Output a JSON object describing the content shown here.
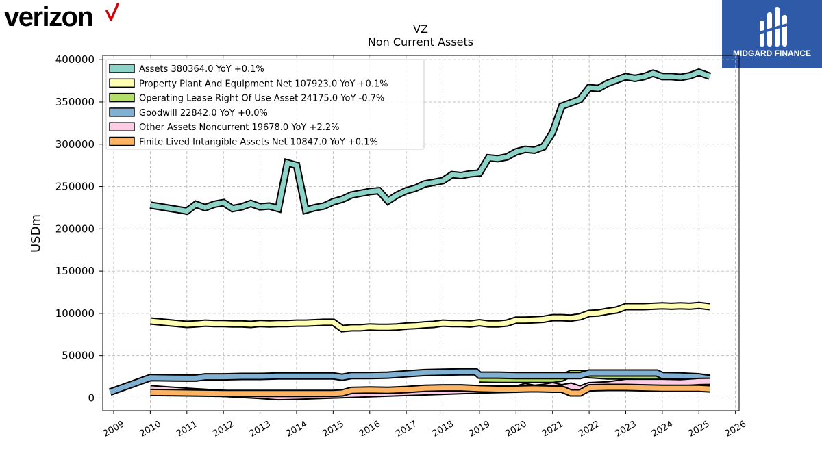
{
  "brand": {
    "left_logo_text": "verizon",
    "right_logo_text": "MIDGARD FINANCE"
  },
  "chart_data": {
    "type": "area",
    "title": "VZ",
    "subtitle": "Non Current  Assets",
    "ylabel": "USDm",
    "xlabel": "",
    "xlim": [
      2008.7,
      2026.1
    ],
    "ylim": [
      -15000,
      405000
    ],
    "x_ticks": [
      "2009",
      "2010",
      "2011",
      "2012",
      "2013",
      "2014",
      "2015",
      "2016",
      "2017",
      "2018",
      "2019",
      "2020",
      "2021",
      "2022",
      "2023",
      "2024",
      "2025",
      "2026"
    ],
    "y_ticks": [
      "0",
      "50000",
      "100000",
      "150000",
      "200000",
      "250000",
      "300000",
      "350000",
      "400000"
    ],
    "grid": true,
    "legend_position": "top-left",
    "series": [
      {
        "name": "Assets  380364.0 YoY +0.1%",
        "color": "#8dd3c7",
        "x": [
          2010.0,
          2011.0,
          2011.25,
          2011.5,
          2011.75,
          2012.0,
          2012.25,
          2012.5,
          2012.75,
          2013.0,
          2013.25,
          2013.5,
          2013.75,
          2014.0,
          2014.25,
          2014.5,
          2014.75,
          2015.0,
          2015.25,
          2015.5,
          2015.75,
          2016.0,
          2016.25,
          2016.5,
          2016.75,
          2017.0,
          2017.25,
          2017.5,
          2017.75,
          2018.0,
          2018.25,
          2018.5,
          2018.75,
          2019.0,
          2019.25,
          2019.5,
          2019.75,
          2020.0,
          2020.25,
          2020.5,
          2020.75,
          2021.0,
          2021.25,
          2021.5,
          2021.75,
          2022.0,
          2022.25,
          2022.5,
          2022.75,
          2023.0,
          2023.25,
          2023.5,
          2023.75,
          2024.0,
          2024.25,
          2024.5,
          2024.75,
          2025.0,
          2025.3
        ],
        "values": [
          228000,
          221000,
          229000,
          225000,
          229000,
          231000,
          224000,
          226000,
          230000,
          226000,
          227000,
          224000,
          278000,
          275000,
          222000,
          225000,
          227000,
          232000,
          235000,
          240000,
          242000,
          244000,
          245000,
          233000,
          240000,
          245000,
          248000,
          253000,
          255000,
          257000,
          264000,
          263000,
          265000,
          266000,
          284000,
          283000,
          285000,
          291000,
          294000,
          293000,
          297000,
          314000,
          345000,
          349000,
          353000,
          367000,
          366000,
          372000,
          376000,
          380000,
          378000,
          380000,
          384000,
          380000,
          380000,
          379000,
          381000,
          385000,
          380364
        ]
      },
      {
        "name": "Property Plant And Equipment Net  107923.0 YoY +0.1%",
        "color": "#ffffb3",
        "x": [
          2010.0,
          2011.0,
          2011.25,
          2011.5,
          2011.75,
          2012.0,
          2012.25,
          2012.5,
          2012.75,
          2013.0,
          2013.25,
          2013.5,
          2013.75,
          2014.0,
          2014.25,
          2014.5,
          2014.75,
          2015.0,
          2015.25,
          2015.5,
          2015.75,
          2016.0,
          2016.25,
          2016.5,
          2016.75,
          2017.0,
          2017.25,
          2017.5,
          2017.75,
          2018.0,
          2018.25,
          2018.5,
          2018.75,
          2019.0,
          2019.25,
          2019.5,
          2019.75,
          2020.0,
          2020.25,
          2020.5,
          2020.75,
          2021.0,
          2021.25,
          2021.5,
          2021.75,
          2022.0,
          2022.25,
          2022.5,
          2022.75,
          2023.0,
          2023.25,
          2023.5,
          2023.75,
          2024.0,
          2024.25,
          2024.5,
          2024.75,
          2025.0,
          2025.3
        ],
        "values": [
          91000,
          87000,
          87500,
          88500,
          88000,
          88000,
          87500,
          87500,
          87000,
          88000,
          87500,
          88000,
          88000,
          88500,
          88500,
          89000,
          89500,
          89500,
          82000,
          83000,
          83000,
          84000,
          83500,
          83500,
          84000,
          85000,
          85500,
          86500,
          87000,
          88500,
          88000,
          88000,
          87500,
          89000,
          87500,
          87500,
          88500,
          92000,
          92000,
          92500,
          93000,
          95000,
          95000,
          94500,
          96000,
          100000,
          100500,
          102500,
          104000,
          108000,
          108000,
          108000,
          108500,
          109000,
          108500,
          109000,
          108500,
          109500,
          107923
        ]
      },
      {
        "name": "Operating Lease Right Of Use Asset  24175.0 YoY -0.7%",
        "color": "#b3de69",
        "x": [
          2019.0,
          2019.5,
          2020.0,
          2020.5,
          2021.0,
          2021.25,
          2021.5,
          2021.75,
          2022.0,
          2022.5,
          2023.0,
          2023.5,
          2023.75,
          2024.0,
          2024.5,
          2025.0,
          2025.3
        ],
        "values": [
          22500,
          22000,
          22000,
          22000,
          22000,
          23500,
          29000,
          29000,
          27500,
          26000,
          26000,
          25000,
          25000,
          25500,
          25000,
          24500,
          24175
        ]
      },
      {
        "name": "Goodwill  22842.0 YoY +0.0%",
        "color": "#80b1d3",
        "x": [
          2008.9,
          2010.0,
          2011.0,
          2011.25,
          2011.5,
          2012.0,
          2012.5,
          2013.0,
          2013.5,
          2014.0,
          2014.5,
          2015.0,
          2015.25,
          2015.5,
          2016.0,
          2016.5,
          2017.0,
          2017.5,
          2018.0,
          2018.5,
          2018.9,
          2019.0,
          2019.5,
          2020.0,
          2020.5,
          2021.0,
          2021.5,
          2021.75,
          2022.0,
          2022.5,
          2023.0,
          2023.5,
          2023.85,
          2024.0,
          2024.5,
          2025.0,
          2025.3
        ],
        "values": [
          7000,
          24000,
          23500,
          23500,
          25000,
          25000,
          25500,
          25500,
          26000,
          26000,
          26000,
          26000,
          24500,
          26500,
          26500,
          27000,
          28500,
          30000,
          30500,
          31000,
          31000,
          27000,
          27000,
          26500,
          26500,
          26500,
          26500,
          26500,
          29500,
          29500,
          29500,
          29500,
          29500,
          26500,
          26000,
          25000,
          22842
        ]
      },
      {
        "name": "Other Assets Noncurrent  19678.0 YoY +2.2%",
        "color": "#fccde5",
        "x": [
          2010.0,
          2011.0,
          2012.0,
          2013.0,
          2013.5,
          2014.0,
          2015.0,
          2016.0,
          2017.0,
          2018.0,
          2019.0,
          2020.0,
          2020.25,
          2020.5,
          2020.75,
          2021.0,
          2021.25,
          2021.5,
          2021.75,
          2022.0,
          2022.5,
          2023.0,
          2024.0,
          2024.5,
          2025.0,
          2025.3
        ],
        "values": [
          11000,
          8000,
          5500,
          3000,
          1500,
          2000,
          3500,
          5000,
          6500,
          8000,
          9500,
          10500,
          13500,
          11500,
          12500,
          14500,
          12000,
          14000,
          10500,
          14500,
          15500,
          18500,
          18500,
          18000,
          19500,
          19678
        ]
      },
      {
        "name": "Finite Lived Intangible Assets Net  10847.0 YoY +0.1%",
        "color": "#fdb462",
        "x": [
          2010.0,
          2011.0,
          2012.0,
          2013.0,
          2014.0,
          2015.0,
          2015.25,
          2015.5,
          2016.0,
          2016.5,
          2017.0,
          2017.5,
          2018.0,
          2018.5,
          2019.0,
          2019.5,
          2020.0,
          2020.5,
          2021.0,
          2021.25,
          2021.5,
          2021.75,
          2022.0,
          2022.5,
          2023.0,
          2023.5,
          2024.0,
          2024.5,
          2025.0,
          2025.3
        ],
        "values": [
          6500,
          6000,
          5500,
          5500,
          5500,
          5500,
          6000,
          9000,
          9500,
          9000,
          10000,
          11500,
          12000,
          12000,
          11000,
          10500,
          10500,
          11000,
          10500,
          10500,
          6000,
          6000,
          12000,
          12500,
          12500,
          12000,
          11500,
          11500,
          11500,
          10847
        ]
      }
    ]
  }
}
